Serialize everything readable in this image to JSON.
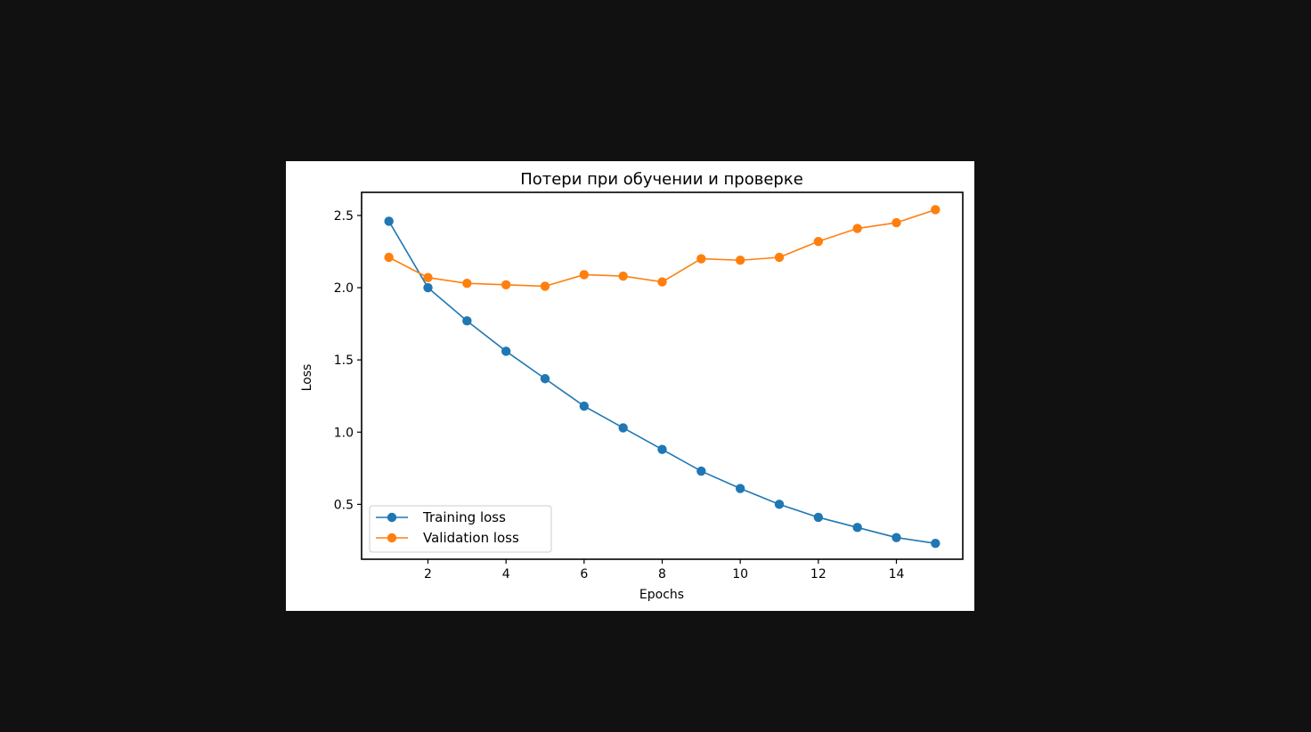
{
  "chart_data": {
    "type": "line",
    "title": "Потери при обучении и проверке",
    "xlabel": "Epochs",
    "ylabel": "Loss",
    "x": [
      1,
      2,
      3,
      4,
      5,
      6,
      7,
      8,
      9,
      10,
      11,
      12,
      13,
      14,
      15
    ],
    "xlim": [
      0.3,
      15.7
    ],
    "ylim": [
      0.12,
      2.66
    ],
    "xticks": [
      2,
      4,
      6,
      8,
      10,
      12,
      14
    ],
    "yticks": [
      0.5,
      1.0,
      1.5,
      2.0,
      2.5
    ],
    "grid": false,
    "legend_position": "lower-left",
    "series": [
      {
        "name": "Training loss",
        "color": "#1f77b4",
        "marker": "circle",
        "values": [
          2.46,
          2.0,
          1.77,
          1.56,
          1.37,
          1.18,
          1.03,
          0.88,
          0.73,
          0.61,
          0.5,
          0.41,
          0.34,
          0.27,
          0.23
        ]
      },
      {
        "name": "Validation loss",
        "color": "#ff7f0e",
        "marker": "circle",
        "values": [
          2.21,
          2.07,
          2.03,
          2.02,
          2.01,
          2.09,
          2.08,
          2.04,
          2.2,
          2.19,
          2.21,
          2.32,
          2.41,
          2.45,
          2.54
        ]
      }
    ]
  }
}
